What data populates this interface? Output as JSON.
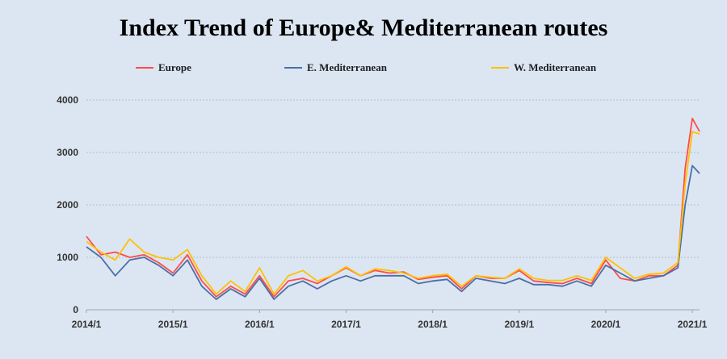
{
  "chart_data": {
    "type": "line",
    "title": "Index Trend of Europe& Mediterranean routes",
    "xlabel": "",
    "ylabel": "",
    "ylim": [
      0,
      4000
    ],
    "yticks": [
      0,
      1000,
      2000,
      3000,
      4000
    ],
    "x_tick_labels": [
      "2014/1",
      "2015/1",
      "2016/1",
      "2017/1",
      "2018/1",
      "2019/1",
      "2020/1",
      "2021/1"
    ],
    "grid": "horizontal-dotted",
    "legend_position": "top",
    "series": [
      {
        "name": "Europe",
        "color": "#ff4b4b",
        "x": [
          "2014/1",
          "2014/3",
          "2014/5",
          "2014/7",
          "2014/9",
          "2014/11",
          "2015/1",
          "2015/3",
          "2015/5",
          "2015/7",
          "2015/9",
          "2015/11",
          "2016/1",
          "2016/3",
          "2016/5",
          "2016/7",
          "2016/9",
          "2016/11",
          "2017/1",
          "2017/3",
          "2017/5",
          "2017/7",
          "2017/9",
          "2017/11",
          "2018/1",
          "2018/3",
          "2018/5",
          "2018/7",
          "2018/9",
          "2018/11",
          "2019/1",
          "2019/3",
          "2019/5",
          "2019/7",
          "2019/9",
          "2019/11",
          "2020/1",
          "2020/3",
          "2020/5",
          "2020/7",
          "2020/9",
          "2020/11",
          "2020/12",
          "2021/1",
          "2021/2"
        ],
        "y": [
          1400,
          1050,
          1100,
          1000,
          1050,
          900,
          700,
          1050,
          550,
          250,
          450,
          300,
          650,
          250,
          550,
          600,
          500,
          650,
          800,
          650,
          750,
          700,
          720,
          580,
          620,
          650,
          400,
          650,
          600,
          600,
          750,
          550,
          520,
          500,
          600,
          500,
          950,
          600,
          550,
          650,
          650,
          850,
          2700,
          3650,
          3400
        ]
      },
      {
        "name": "E. Mediterranean",
        "color": "#4a6fa5",
        "x": [
          "2014/1",
          "2014/3",
          "2014/5",
          "2014/7",
          "2014/9",
          "2014/11",
          "2015/1",
          "2015/3",
          "2015/5",
          "2015/7",
          "2015/9",
          "2015/11",
          "2016/1",
          "2016/3",
          "2016/5",
          "2016/7",
          "2016/9",
          "2016/11",
          "2017/1",
          "2017/3",
          "2017/5",
          "2017/7",
          "2017/9",
          "2017/11",
          "2018/1",
          "2018/3",
          "2018/5",
          "2018/7",
          "2018/9",
          "2018/11",
          "2019/1",
          "2019/3",
          "2019/5",
          "2019/7",
          "2019/9",
          "2019/11",
          "2020/1",
          "2020/3",
          "2020/5",
          "2020/7",
          "2020/9",
          "2020/11",
          "2020/12",
          "2021/1",
          "2021/2"
        ],
        "y": [
          1200,
          1000,
          650,
          950,
          1000,
          850,
          650,
          950,
          450,
          200,
          400,
          250,
          600,
          200,
          450,
          550,
          400,
          550,
          650,
          550,
          650,
          650,
          650,
          500,
          550,
          580,
          350,
          600,
          550,
          500,
          600,
          480,
          480,
          450,
          550,
          450,
          850,
          700,
          550,
          600,
          650,
          800,
          2000,
          2750,
          2600
        ]
      },
      {
        "name": "W. Mediterranean",
        "color": "#ffc000",
        "x": [
          "2014/1",
          "2014/3",
          "2014/5",
          "2014/7",
          "2014/9",
          "2014/11",
          "2015/1",
          "2015/3",
          "2015/5",
          "2015/7",
          "2015/9",
          "2015/11",
          "2016/1",
          "2016/3",
          "2016/5",
          "2016/7",
          "2016/9",
          "2016/11",
          "2017/1",
          "2017/3",
          "2017/5",
          "2017/7",
          "2017/9",
          "2017/11",
          "2018/1",
          "2018/3",
          "2018/5",
          "2018/7",
          "2018/9",
          "2018/11",
          "2019/1",
          "2019/3",
          "2019/5",
          "2019/7",
          "2019/9",
          "2019/11",
          "2020/1",
          "2020/3",
          "2020/5",
          "2020/7",
          "2020/9",
          "2020/11",
          "2020/12",
          "2021/1",
          "2021/2"
        ],
        "y": [
          1300,
          1100,
          950,
          1350,
          1100,
          1000,
          950,
          1150,
          650,
          300,
          550,
          350,
          800,
          300,
          650,
          750,
          550,
          650,
          820,
          650,
          780,
          750,
          700,
          600,
          650,
          680,
          450,
          650,
          620,
          600,
          780,
          600,
          560,
          560,
          650,
          560,
          1000,
          800,
          600,
          680,
          700,
          900,
          2400,
          3400,
          3350
        ]
      }
    ]
  }
}
